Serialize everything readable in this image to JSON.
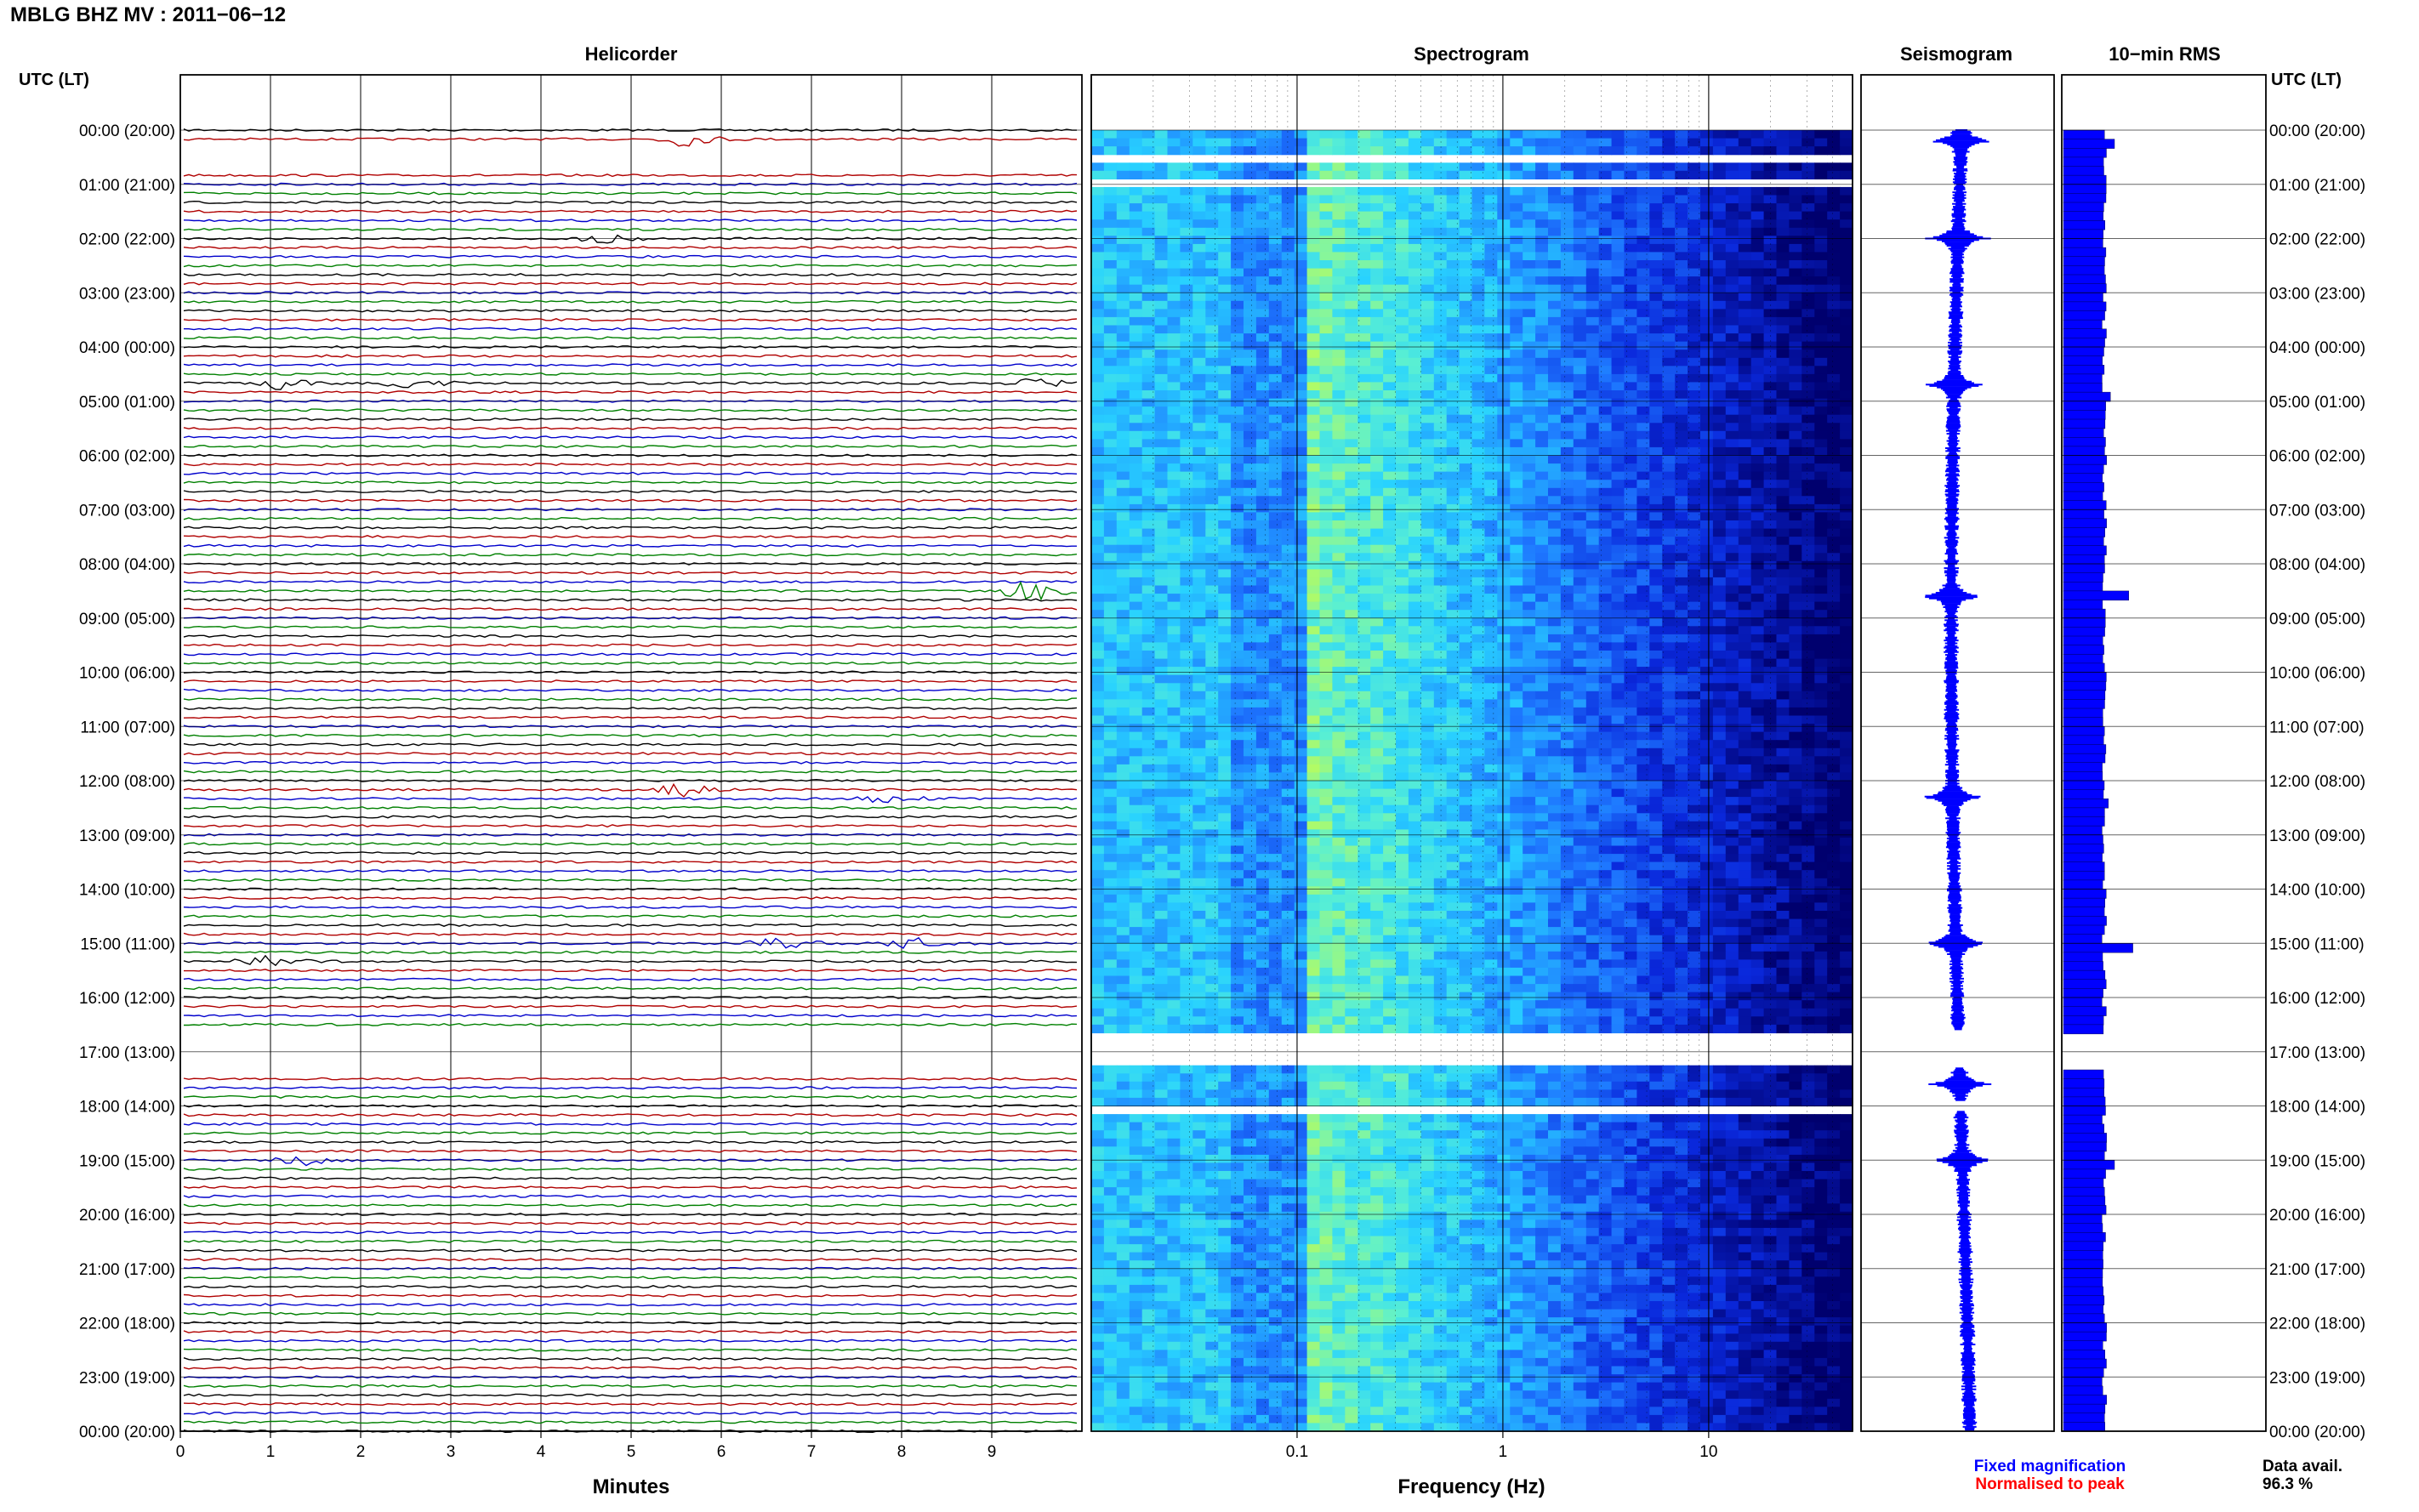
{
  "figure": {
    "title": "MBLG BHZ MV : 2011−06−12",
    "utc_header_left": "UTC (LT)",
    "utc_header_right": "UTC (LT)",
    "legend_fixed": "Fixed magnification",
    "legend_normalised": "Normalised to peak",
    "data_avail_label": "Data avail.",
    "data_avail_value": "96.3 %"
  },
  "colors": {
    "trace_cycle": [
      "#000000",
      "#b00000",
      "#0000cc",
      "#008000"
    ],
    "spectrum_dark": "#000080",
    "spectrum_mid": "#1a6cff",
    "spectrum_light": "#33d6ff",
    "spectrum_hot": "#ccff33",
    "legend_fixed": "#0000ff",
    "legend_normalised": "#ff0000",
    "rms_bar": "#0000ff"
  },
  "chart_data": [
    {
      "type": "line",
      "title": "Helicorder",
      "xlabel": "Minutes",
      "xlim": [
        0,
        10
      ],
      "x_ticks": [
        0,
        1,
        2,
        3,
        4,
        5,
        6,
        7,
        8,
        9
      ],
      "rows_per_hour": 6,
      "y_tick_labels": [
        "00:00 (20:00)",
        "01:00 (21:00)",
        "02:00 (22:00)",
        "03:00 (23:00)",
        "04:00 (00:00)",
        "05:00 (01:00)",
        "06:00 (02:00)",
        "07:00 (03:00)",
        "08:00 (04:00)",
        "09:00 (05:00)",
        "10:00 (06:00)",
        "11:00 (07:00)",
        "12:00 (08:00)",
        "13:00 (09:00)",
        "14:00 (10:00)",
        "15:00 (11:00)",
        "16:00 (12:00)",
        "17:00 (13:00)",
        "18:00 (14:00)",
        "19:00 (15:00)",
        "20:00 (16:00)",
        "21:00 (17:00)",
        "22:00 (18:00)",
        "23:00 (19:00)",
        "00:00 (20:00)"
      ],
      "gaps_hours": [
        [
          0.3,
          0.7
        ],
        [
          16.55,
          17.45
        ]
      ],
      "events": [
        {
          "hour": 0.15,
          "minute": 5.4,
          "amp": 2.0
        },
        {
          "hour": 1.95,
          "minute": 4.6,
          "amp": 1.2
        },
        {
          "hour": 4.7,
          "minute": 0.9,
          "amp": 1.6
        },
        {
          "hour": 4.7,
          "minute": 2.4,
          "amp": 1.4
        },
        {
          "hour": 4.7,
          "minute": 9.3,
          "amp": 1.5
        },
        {
          "hour": 8.5,
          "minute": 9.3,
          "amp": 3.0
        },
        {
          "hour": 12.15,
          "minute": 5.4,
          "amp": 2.0
        },
        {
          "hour": 12.3,
          "minute": 7.7,
          "amp": 1.2
        },
        {
          "hour": 14.95,
          "minute": 6.4,
          "amp": 2.2
        },
        {
          "hour": 14.95,
          "minute": 8.0,
          "amp": 1.5
        },
        {
          "hour": 15.3,
          "minute": 0.8,
          "amp": 1.6
        },
        {
          "hour": 19.0,
          "minute": 1.2,
          "amp": 1.4
        }
      ]
    },
    {
      "type": "heatmap",
      "title": "Spectrogram",
      "xlabel": "Frequency (Hz)",
      "x_scale": "log",
      "xlim": [
        0.01,
        50
      ],
      "x_ticks": [
        0.1,
        1,
        10
      ],
      "x_tick_labels": [
        "0.1",
        "1",
        "10"
      ],
      "ylim_hours": [
        0,
        24
      ],
      "gaps_hours": [
        [
          0.45,
          0.55
        ],
        [
          0.9,
          1.0
        ],
        [
          16.6,
          17.3
        ],
        [
          17.95,
          18.1
        ]
      ]
    },
    {
      "type": "line",
      "title": "Seismogram",
      "ylim_hours": [
        0,
        24
      ],
      "events_hours": [
        0.2,
        2.0,
        4.7,
        8.6,
        12.3,
        15.0,
        17.6,
        19.0
      ]
    },
    {
      "type": "bar",
      "title": "10−min RMS",
      "ylim_hours": [
        0,
        24
      ],
      "baseline": 1.0,
      "peaks": [
        {
          "hour": 0.1,
          "value": 1.25
        },
        {
          "hour": 4.8,
          "value": 1.15
        },
        {
          "hour": 8.55,
          "value": 1.6
        },
        {
          "hour": 12.3,
          "value": 1.1
        },
        {
          "hour": 14.95,
          "value": 1.7
        },
        {
          "hour": 19.0,
          "value": 1.25
        }
      ],
      "gaps_hours": [
        [
          16.6,
          17.3
        ]
      ]
    }
  ]
}
